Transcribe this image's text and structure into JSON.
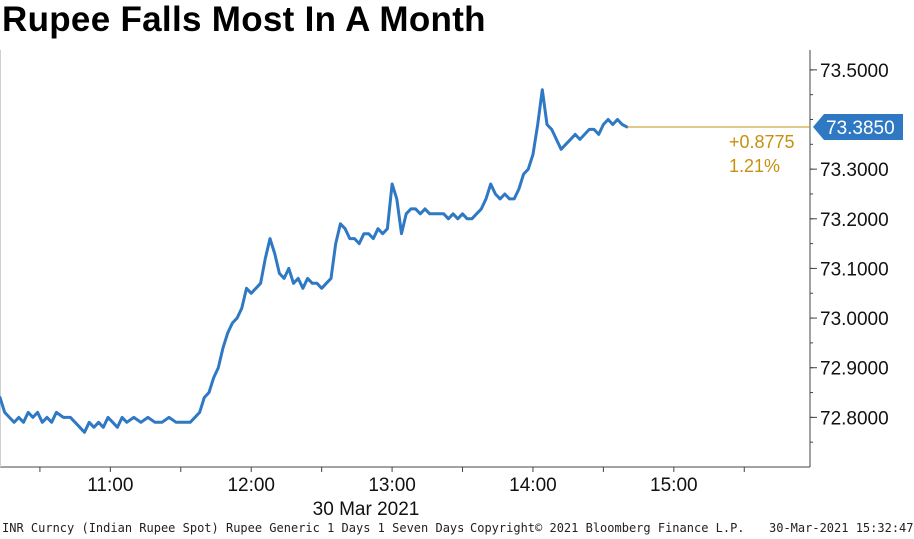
{
  "title": "Rupee Falls Most In A Month",
  "chart_data": {
    "type": "line",
    "title": "Rupee Falls Most In A Month",
    "xlabel": "30 Mar 2021",
    "ylabel": "",
    "x_ticks": [
      "11:00",
      "12:00",
      "13:00",
      "14:00",
      "15:00"
    ],
    "y_ticks": [
      "72.8000",
      "72.9000",
      "73.0000",
      "73.1000",
      "73.2000",
      "73.3000",
      "73.5000"
    ],
    "ylim": [
      72.7,
      73.54
    ],
    "xlim": [
      "10:13",
      "15:58"
    ],
    "grid": false,
    "line_color": "#2f78c4",
    "last_value_label": "73.3850",
    "change_label": "+0.8775",
    "change_pct_label": "1.21%",
    "change_color": "#c8900f",
    "series": [
      {
        "values": [
          [
            "10:13",
            72.84
          ],
          [
            "10:15",
            72.81
          ],
          [
            "10:17",
            72.8
          ],
          [
            "10:19",
            72.79
          ],
          [
            "10:21",
            72.8
          ],
          [
            "10:23",
            72.79
          ],
          [
            "10:25",
            72.81
          ],
          [
            "10:27",
            72.8
          ],
          [
            "10:29",
            72.81
          ],
          [
            "10:31",
            72.79
          ],
          [
            "10:33",
            72.8
          ],
          [
            "10:35",
            72.79
          ],
          [
            "10:37",
            72.81
          ],
          [
            "10:40",
            72.8
          ],
          [
            "10:43",
            72.8
          ],
          [
            "10:45",
            72.79
          ],
          [
            "10:47",
            72.78
          ],
          [
            "10:49",
            72.77
          ],
          [
            "10:51",
            72.79
          ],
          [
            "10:53",
            72.78
          ],
          [
            "10:55",
            72.79
          ],
          [
            "10:57",
            72.78
          ],
          [
            "10:59",
            72.8
          ],
          [
            "11:01",
            72.79
          ],
          [
            "11:03",
            72.78
          ],
          [
            "11:05",
            72.8
          ],
          [
            "11:07",
            72.79
          ],
          [
            "11:10",
            72.8
          ],
          [
            "11:13",
            72.79
          ],
          [
            "11:16",
            72.8
          ],
          [
            "11:19",
            72.79
          ],
          [
            "11:22",
            72.79
          ],
          [
            "11:25",
            72.8
          ],
          [
            "11:28",
            72.79
          ],
          [
            "11:31",
            72.79
          ],
          [
            "11:34",
            72.79
          ],
          [
            "11:36",
            72.8
          ],
          [
            "11:38",
            72.81
          ],
          [
            "11:40",
            72.84
          ],
          [
            "11:42",
            72.85
          ],
          [
            "11:44",
            72.88
          ],
          [
            "11:46",
            72.9
          ],
          [
            "11:48",
            72.94
          ],
          [
            "11:50",
            72.97
          ],
          [
            "11:52",
            72.99
          ],
          [
            "11:54",
            73.0
          ],
          [
            "11:56",
            73.02
          ],
          [
            "11:58",
            73.06
          ],
          [
            "12:00",
            73.05
          ],
          [
            "12:02",
            73.06
          ],
          [
            "12:04",
            73.07
          ],
          [
            "12:06",
            73.12
          ],
          [
            "12:08",
            73.16
          ],
          [
            "12:10",
            73.13
          ],
          [
            "12:12",
            73.09
          ],
          [
            "12:14",
            73.08
          ],
          [
            "12:16",
            73.1
          ],
          [
            "12:18",
            73.07
          ],
          [
            "12:20",
            73.08
          ],
          [
            "12:22",
            73.06
          ],
          [
            "12:24",
            73.08
          ],
          [
            "12:26",
            73.07
          ],
          [
            "12:28",
            73.07
          ],
          [
            "12:30",
            73.06
          ],
          [
            "12:32",
            73.07
          ],
          [
            "12:34",
            73.08
          ],
          [
            "12:36",
            73.15
          ],
          [
            "12:38",
            73.19
          ],
          [
            "12:40",
            73.18
          ],
          [
            "12:42",
            73.16
          ],
          [
            "12:44",
            73.16
          ],
          [
            "12:46",
            73.15
          ],
          [
            "12:48",
            73.17
          ],
          [
            "12:50",
            73.17
          ],
          [
            "12:52",
            73.16
          ],
          [
            "12:54",
            73.18
          ],
          [
            "12:56",
            73.17
          ],
          [
            "12:58",
            73.18
          ],
          [
            "13:00",
            73.27
          ],
          [
            "13:02",
            73.24
          ],
          [
            "13:04",
            73.17
          ],
          [
            "13:06",
            73.21
          ],
          [
            "13:08",
            73.22
          ],
          [
            "13:10",
            73.22
          ],
          [
            "13:12",
            73.21
          ],
          [
            "13:14",
            73.22
          ],
          [
            "13:16",
            73.21
          ],
          [
            "13:18",
            73.21
          ],
          [
            "13:20",
            73.21
          ],
          [
            "13:22",
            73.21
          ],
          [
            "13:24",
            73.2
          ],
          [
            "13:26",
            73.21
          ],
          [
            "13:28",
            73.2
          ],
          [
            "13:30",
            73.21
          ],
          [
            "13:32",
            73.2
          ],
          [
            "13:34",
            73.2
          ],
          [
            "13:36",
            73.21
          ],
          [
            "13:38",
            73.22
          ],
          [
            "13:40",
            73.24
          ],
          [
            "13:42",
            73.27
          ],
          [
            "13:44",
            73.25
          ],
          [
            "13:46",
            73.24
          ],
          [
            "13:48",
            73.25
          ],
          [
            "13:50",
            73.24
          ],
          [
            "13:52",
            73.24
          ],
          [
            "13:54",
            73.26
          ],
          [
            "13:56",
            73.29
          ],
          [
            "13:58",
            73.3
          ],
          [
            "14:00",
            73.33
          ],
          [
            "14:02",
            73.39
          ],
          [
            "14:04",
            73.46
          ],
          [
            "14:06",
            73.39
          ],
          [
            "14:08",
            73.38
          ],
          [
            "14:10",
            73.36
          ],
          [
            "14:12",
            73.34
          ],
          [
            "14:14",
            73.35
          ],
          [
            "14:16",
            73.36
          ],
          [
            "14:18",
            73.37
          ],
          [
            "14:20",
            73.36
          ],
          [
            "14:22",
            73.37
          ],
          [
            "14:24",
            73.38
          ],
          [
            "14:26",
            73.38
          ],
          [
            "14:28",
            73.37
          ],
          [
            "14:30",
            73.39
          ],
          [
            "14:32",
            73.4
          ],
          [
            "14:34",
            73.39
          ],
          [
            "14:36",
            73.4
          ],
          [
            "14:38",
            73.39
          ],
          [
            "14:40",
            73.385
          ]
        ]
      }
    ]
  },
  "footer": {
    "left": "INR Curncy (Indian Rupee Spot) Rupee Generic 1 Days 1 Seven Days",
    "center": "Copyright© 2021 Bloomberg Finance L.P.",
    "right": "30-Mar-2021 15:32:47"
  }
}
